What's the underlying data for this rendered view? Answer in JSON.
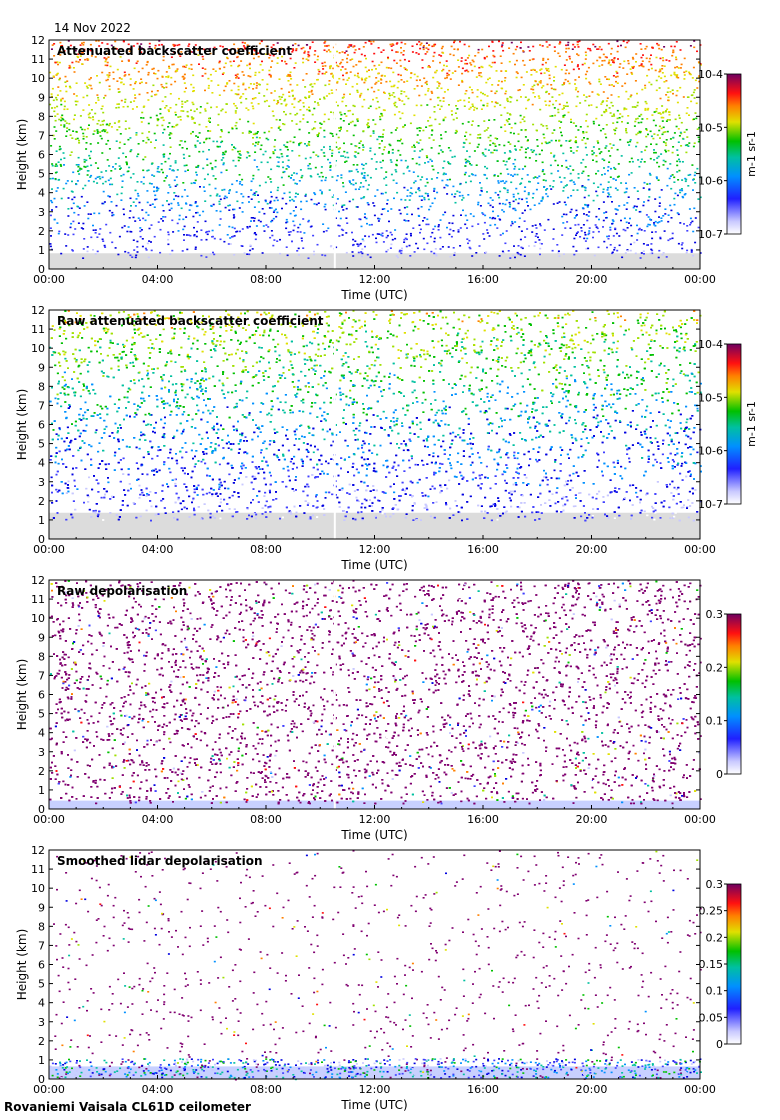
{
  "header": {
    "date": "14 Nov 2022"
  },
  "footer": {
    "caption": "Rovaniemi Vaisala CL61D ceilometer"
  },
  "chart_data": [
    {
      "type": "heatmap",
      "title": "Attenuated backscatter coefficient",
      "xlabel": "Time (UTC)",
      "ylabel": "Height (km)",
      "x_ticks": [
        "00:00",
        "04:00",
        "08:00",
        "12:00",
        "16:00",
        "20:00",
        "00:00"
      ],
      "y_ticks": [
        "0",
        "1",
        "2",
        "3",
        "4",
        "5",
        "6",
        "7",
        "8",
        "9",
        "10",
        "11",
        "12"
      ],
      "ylim": [
        0,
        12
      ],
      "colorbar": {
        "scale": "log",
        "range": [
          1e-07,
          0.0001
        ],
        "ticks": [
          "10-7",
          "10-6",
          "10-5",
          "10-4"
        ],
        "unit": "m-1 sr-1"
      },
      "data_gap_time": "10:30",
      "colors": {
        "low": "#e0e0ff",
        "mid": "#00c000",
        "high": "#800060",
        "bg_noise": "#dcdcdc"
      }
    },
    {
      "type": "heatmap",
      "title": "Raw attenuated backscatter coefficient",
      "xlabel": "Time (UTC)",
      "ylabel": "Height (km)",
      "x_ticks": [
        "00:00",
        "04:00",
        "08:00",
        "12:00",
        "16:00",
        "20:00",
        "00:00"
      ],
      "y_ticks": [
        "0",
        "1",
        "2",
        "3",
        "4",
        "5",
        "6",
        "7",
        "8",
        "9",
        "10",
        "11",
        "12"
      ],
      "ylim": [
        0,
        12
      ],
      "colorbar": {
        "scale": "log",
        "range": [
          1e-07,
          0.0001
        ],
        "ticks": [
          "10-7",
          "10-6",
          "10-5",
          "10-4"
        ],
        "unit": "m-1 sr-1"
      },
      "data_gap_time": "10:30"
    },
    {
      "type": "heatmap",
      "title": "Raw depolarisation",
      "xlabel": "Time (UTC)",
      "ylabel": "Height (km)",
      "x_ticks": [
        "00:00",
        "04:00",
        "08:00",
        "12:00",
        "16:00",
        "20:00",
        "00:00"
      ],
      "y_ticks": [
        "0",
        "1",
        "2",
        "3",
        "4",
        "5",
        "6",
        "7",
        "8",
        "9",
        "10",
        "11",
        "12"
      ],
      "ylim": [
        0,
        12
      ],
      "colorbar": {
        "scale": "linear",
        "range": [
          0,
          0.3
        ],
        "ticks": [
          "0",
          "0.1",
          "0.2",
          "0.3"
        ]
      },
      "data_gap_time": "10:30"
    },
    {
      "type": "heatmap",
      "title": "Smoothed lidar depolarisation",
      "xlabel": "Time (UTC)",
      "ylabel": "Height (km)",
      "x_ticks": [
        "00:00",
        "04:00",
        "08:00",
        "12:00",
        "16:00",
        "20:00",
        "00:00"
      ],
      "y_ticks": [
        "0",
        "1",
        "2",
        "3",
        "4",
        "5",
        "6",
        "7",
        "8",
        "9",
        "10",
        "11",
        "12"
      ],
      "ylim": [
        0,
        12
      ],
      "colorbar": {
        "scale": "linear",
        "range": [
          0,
          0.3
        ],
        "ticks": [
          "0",
          "0.05",
          "0.1",
          "0.15",
          "0.2",
          "0.25",
          "0.3"
        ]
      }
    }
  ]
}
